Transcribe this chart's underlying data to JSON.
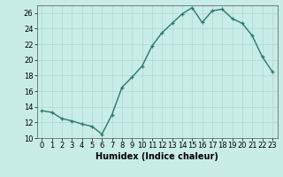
{
  "x": [
    0,
    1,
    2,
    3,
    4,
    5,
    6,
    7,
    8,
    9,
    10,
    11,
    12,
    13,
    14,
    15,
    16,
    17,
    18,
    19,
    20,
    21,
    22,
    23
  ],
  "y": [
    13.5,
    13.3,
    12.5,
    12.2,
    11.8,
    11.5,
    10.5,
    13.0,
    16.5,
    17.8,
    19.2,
    21.8,
    23.5,
    24.7,
    25.9,
    26.7,
    24.8,
    26.3,
    26.5,
    25.3,
    24.7,
    23.1,
    20.4,
    18.5
  ],
  "xlabel": "Humidex (Indice chaleur)",
  "ylim": [
    10,
    27
  ],
  "xlim": [
    -0.5,
    23.5
  ],
  "yticks": [
    10,
    12,
    14,
    16,
    18,
    20,
    22,
    24,
    26
  ],
  "xticks": [
    0,
    1,
    2,
    3,
    4,
    5,
    6,
    7,
    8,
    9,
    10,
    11,
    12,
    13,
    14,
    15,
    16,
    17,
    18,
    19,
    20,
    21,
    22,
    23
  ],
  "xtick_labels": [
    "0",
    "1",
    "2",
    "3",
    "4",
    "5",
    "6",
    "7",
    "8",
    "9",
    "10",
    "11",
    "12",
    "13",
    "14",
    "15",
    "16",
    "17",
    "18",
    "19",
    "20",
    "21",
    "22",
    "23"
  ],
  "line_color": "#2a7a6a",
  "marker": "+",
  "bg_color": "#c8ece6",
  "grid_color": "#b0d8d0",
  "xlabel_fontsize": 7,
  "tick_fontsize": 6,
  "linewidth": 1.0,
  "markersize": 3.5,
  "markeredgewidth": 0.9
}
